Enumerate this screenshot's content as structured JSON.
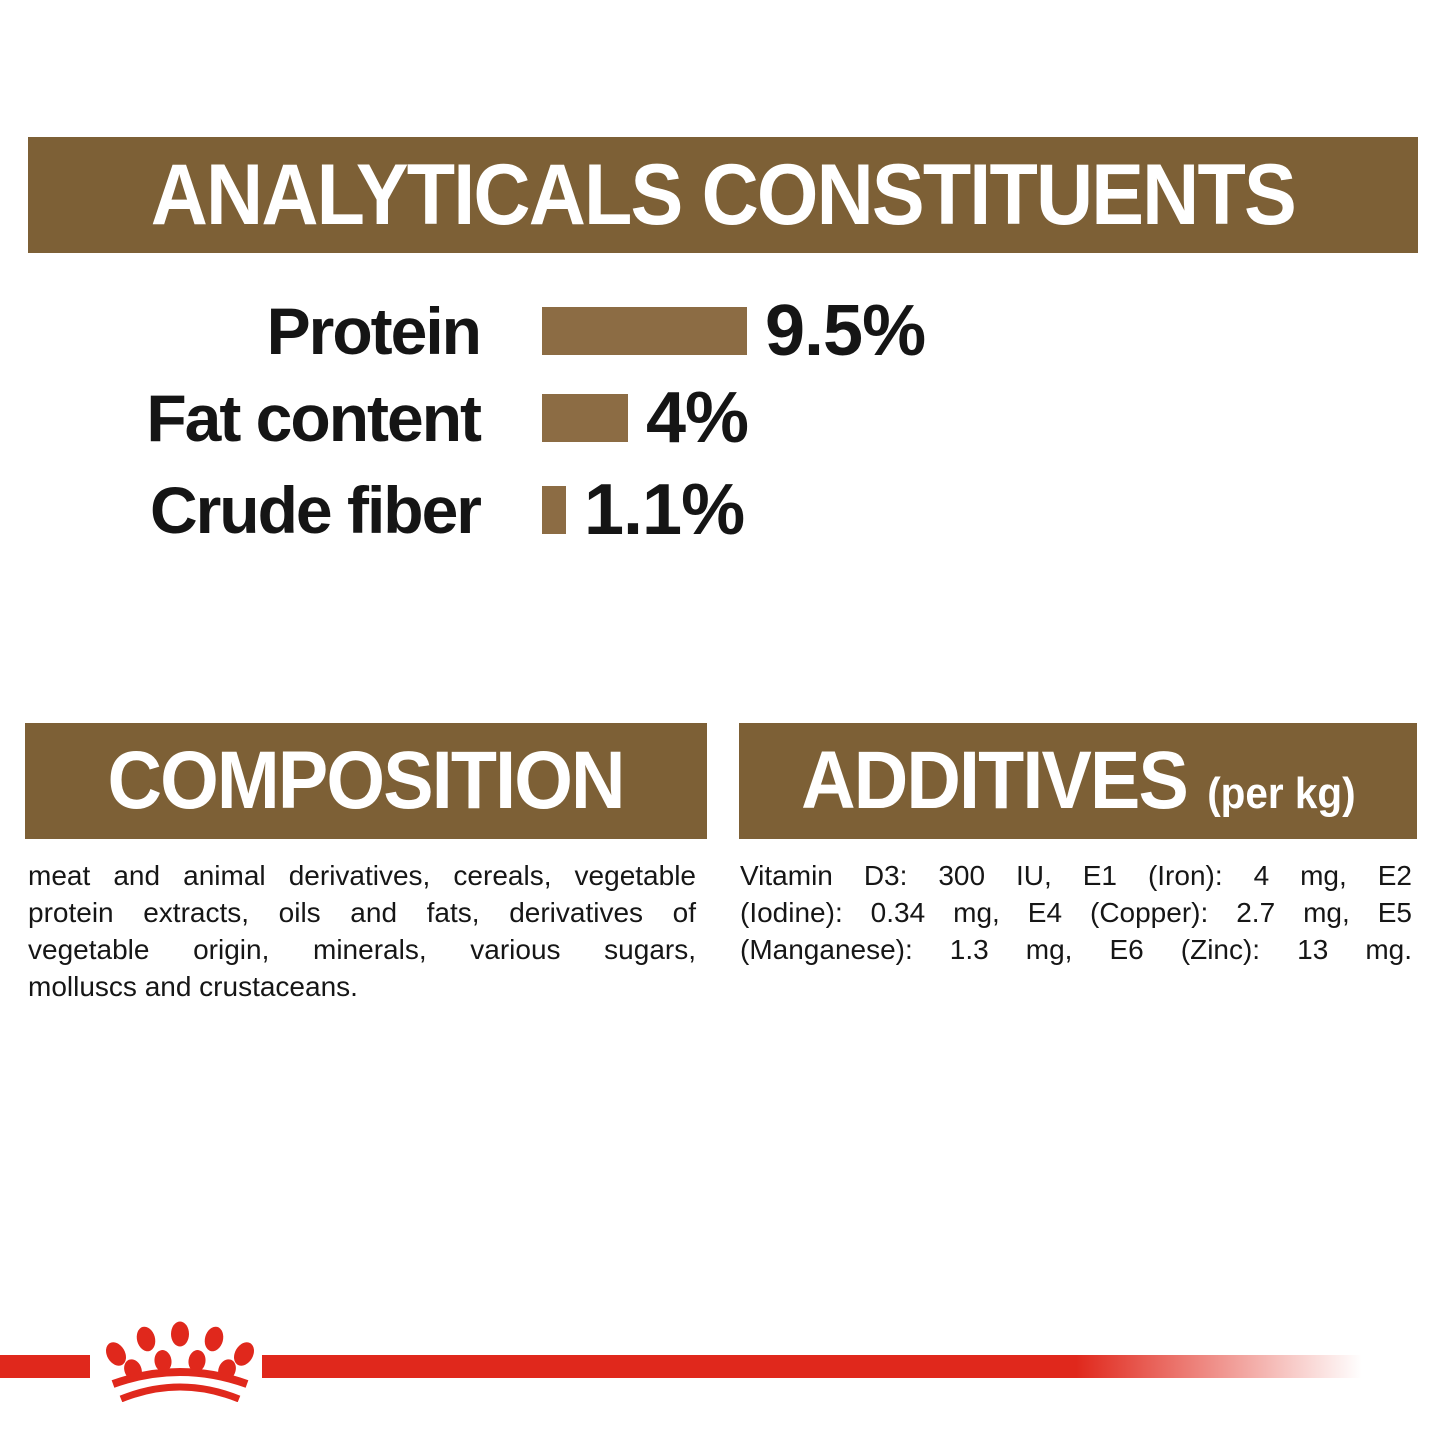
{
  "colors": {
    "brown_header": "#7d6036",
    "brown_bar": "#8c6c44",
    "brand_red": "#e0281c",
    "text_black": "#151515"
  },
  "analyticals": {
    "title": "ANALYTICALS CONSTITUENTS"
  },
  "chart_data": {
    "type": "bar",
    "orientation": "horizontal",
    "title": "ANALYTICALS CONSTITUENTS",
    "categories": [
      "Protein",
      "Fat content",
      "Crude fiber"
    ],
    "values": [
      9.5,
      4,
      1.1
    ],
    "value_labels": [
      "9.5%",
      "4%",
      "1.1%"
    ],
    "unit": "%",
    "xlim": [
      0,
      10
    ],
    "bar_color": "#8c6c44",
    "grid": false,
    "legend": false
  },
  "composition": {
    "title": "COMPOSITION",
    "lines": [
      "meat and animal derivatives, cereals, vegetable",
      "protein extracts, oils and fats, derivatives of",
      "vegetable origin, minerals, various sugars,",
      "molluscs and crustaceans."
    ]
  },
  "additives": {
    "title": "ADDITIVES",
    "unit_label": "(per kg)",
    "lines": [
      "Vitamin D3: 300 IU, E1 (Iron): 4 mg, E2",
      "(Iodine): 0.34 mg, E4 (Copper): 2.7 mg, E5",
      "(Manganese): 1.3 mg, E6 (Zinc): 13 mg."
    ]
  },
  "footer": {
    "logo_icon": "royal-canin-crown-icon"
  }
}
